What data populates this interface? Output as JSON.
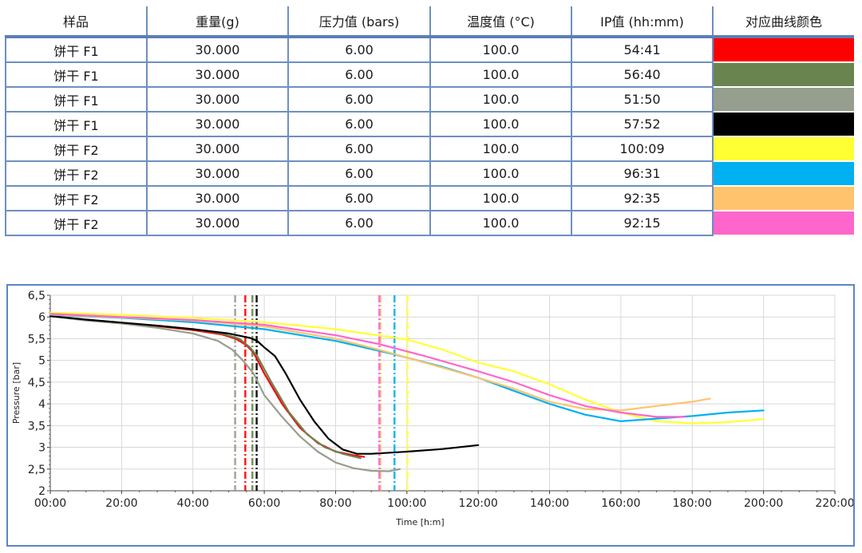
{
  "table": {
    "headers": [
      "样品",
      "重量(g)",
      "压力值 (bars)",
      "温度值 (°C)",
      "IP值 (hh:mm)",
      "对应曲线颜色"
    ],
    "rows": [
      {
        "sample": "饼干 F1",
        "weight": "30.000",
        "pressure": "6.00",
        "temperature": "100.0",
        "ip": "54:41",
        "color": "#ff0000"
      },
      {
        "sample": "饼干 F1",
        "weight": "30.000",
        "pressure": "6.00",
        "temperature": "100.0",
        "ip": "56:40",
        "color": "#6a8450"
      },
      {
        "sample": "饼干 F1",
        "weight": "30.000",
        "pressure": "6.00",
        "temperature": "100.0",
        "ip": "51:50",
        "color": "#969e8e"
      },
      {
        "sample": "饼干 F1",
        "weight": "30.000",
        "pressure": "6.00",
        "temperature": "100.0",
        "ip": "57:52",
        "color": "#000000"
      },
      {
        "sample": "饼干 F2",
        "weight": "30.000",
        "pressure": "6.00",
        "temperature": "100.0",
        "ip": "100:09",
        "color": "#ffff33"
      },
      {
        "sample": "饼干 F2",
        "weight": "30.000",
        "pressure": "6.00",
        "temperature": "100.0",
        "ip": "96:31",
        "color": "#00b0f0"
      },
      {
        "sample": "饼干 F2",
        "weight": "30.000",
        "pressure": "6.00",
        "temperature": "100.0",
        "ip": "92:35",
        "color": "#ffc36e"
      },
      {
        "sample": "饼干 F2",
        "weight": "30.000",
        "pressure": "6.00",
        "temperature": "100.0",
        "ip": "92:15",
        "color": "#ff66cc"
      }
    ]
  },
  "chart_data": {
    "type": "line",
    "xlabel": "Time [h:m]",
    "ylabel": "Pressure [bar]",
    "xlim": [
      0,
      220
    ],
    "ylim": [
      2,
      6.5
    ],
    "x_ticks": [
      "00:00",
      "20:00",
      "40:00",
      "60:00",
      "80:00",
      "100:00",
      "120:00",
      "140:00",
      "160:00",
      "180:00",
      "200:00",
      "220:00"
    ],
    "y_ticks": [
      "2",
      "2,5",
      "3",
      "3,5",
      "4",
      "4,5",
      "5",
      "5,5",
      "6",
      "6,5"
    ],
    "grid": true,
    "series": [
      {
        "color": "#ff0000",
        "ip": 54.68,
        "points": [
          [
            0,
            6.02
          ],
          [
            10,
            5.93
          ],
          [
            20,
            5.86
          ],
          [
            30,
            5.79
          ],
          [
            40,
            5.7
          ],
          [
            48,
            5.6
          ],
          [
            52,
            5.5
          ],
          [
            55,
            5.35
          ],
          [
            57,
            5.18
          ],
          [
            60,
            4.7
          ],
          [
            65,
            4.0
          ],
          [
            70,
            3.45
          ],
          [
            75,
            3.1
          ],
          [
            80,
            2.9
          ],
          [
            85,
            2.82
          ],
          [
            88,
            2.78
          ]
        ]
      },
      {
        "color": "#6a8450",
        "ip": 56.67,
        "points": [
          [
            0,
            6.02
          ],
          [
            10,
            5.94
          ],
          [
            20,
            5.87
          ],
          [
            30,
            5.8
          ],
          [
            40,
            5.72
          ],
          [
            48,
            5.62
          ],
          [
            53,
            5.5
          ],
          [
            56,
            5.3
          ],
          [
            58,
            5.1
          ],
          [
            62,
            4.5
          ],
          [
            67,
            3.8
          ],
          [
            72,
            3.3
          ],
          [
            77,
            3.0
          ],
          [
            82,
            2.85
          ],
          [
            87,
            2.75
          ]
        ]
      },
      {
        "color": "#969e8e",
        "ip": 51.83,
        "points": [
          [
            0,
            6.02
          ],
          [
            10,
            5.92
          ],
          [
            20,
            5.85
          ],
          [
            30,
            5.75
          ],
          [
            40,
            5.62
          ],
          [
            47,
            5.45
          ],
          [
            51,
            5.25
          ],
          [
            54,
            5.0
          ],
          [
            57,
            4.7
          ],
          [
            60,
            4.2
          ],
          [
            65,
            3.7
          ],
          [
            70,
            3.25
          ],
          [
            75,
            2.9
          ],
          [
            80,
            2.65
          ],
          [
            85,
            2.52
          ],
          [
            90,
            2.46
          ],
          [
            95,
            2.45
          ],
          [
            98,
            2.5
          ]
        ]
      },
      {
        "color": "#000000",
        "ip": 57.87,
        "points": [
          [
            0,
            6.02
          ],
          [
            10,
            5.94
          ],
          [
            20,
            5.87
          ],
          [
            30,
            5.8
          ],
          [
            40,
            5.72
          ],
          [
            50,
            5.62
          ],
          [
            56,
            5.52
          ],
          [
            58,
            5.45
          ],
          [
            60,
            5.3
          ],
          [
            63,
            5.1
          ],
          [
            66,
            4.7
          ],
          [
            70,
            4.1
          ],
          [
            74,
            3.6
          ],
          [
            78,
            3.2
          ],
          [
            82,
            2.95
          ],
          [
            86,
            2.85
          ],
          [
            90,
            2.85
          ],
          [
            100,
            2.9
          ],
          [
            110,
            2.96
          ],
          [
            120,
            3.05
          ]
        ]
      },
      {
        "color": "#ffff33",
        "ip": 100.15,
        "points": [
          [
            0,
            6.1
          ],
          [
            20,
            6.05
          ],
          [
            40,
            5.98
          ],
          [
            60,
            5.88
          ],
          [
            80,
            5.72
          ],
          [
            100,
            5.48
          ],
          [
            110,
            5.25
          ],
          [
            120,
            4.95
          ],
          [
            130,
            4.75
          ],
          [
            140,
            4.45
          ],
          [
            150,
            4.1
          ],
          [
            160,
            3.8
          ],
          [
            170,
            3.6
          ],
          [
            180,
            3.55
          ],
          [
            190,
            3.58
          ],
          [
            200,
            3.65
          ]
        ]
      },
      {
        "color": "#00b0f0",
        "ip": 96.52,
        "points": [
          [
            0,
            6.05
          ],
          [
            20,
            5.98
          ],
          [
            40,
            5.88
          ],
          [
            60,
            5.72
          ],
          [
            80,
            5.45
          ],
          [
            96,
            5.15
          ],
          [
            110,
            4.85
          ],
          [
            120,
            4.6
          ],
          [
            130,
            4.3
          ],
          [
            140,
            4.0
          ],
          [
            150,
            3.75
          ],
          [
            160,
            3.6
          ],
          [
            170,
            3.66
          ],
          [
            180,
            3.72
          ],
          [
            190,
            3.8
          ],
          [
            200,
            3.85
          ]
        ]
      },
      {
        "color": "#ffc36e",
        "ip": 92.58,
        "points": [
          [
            0,
            6.06
          ],
          [
            20,
            5.99
          ],
          [
            40,
            5.92
          ],
          [
            60,
            5.78
          ],
          [
            80,
            5.5
          ],
          [
            92,
            5.25
          ],
          [
            105,
            4.95
          ],
          [
            120,
            4.6
          ],
          [
            130,
            4.35
          ],
          [
            140,
            4.05
          ],
          [
            150,
            3.88
          ],
          [
            160,
            3.85
          ],
          [
            170,
            3.95
          ],
          [
            180,
            4.05
          ],
          [
            185,
            4.12
          ]
        ]
      },
      {
        "color": "#ff66cc",
        "ip": 92.25,
        "points": [
          [
            0,
            6.07
          ],
          [
            20,
            6.0
          ],
          [
            40,
            5.93
          ],
          [
            60,
            5.82
          ],
          [
            80,
            5.58
          ],
          [
            92,
            5.38
          ],
          [
            105,
            5.1
          ],
          [
            120,
            4.75
          ],
          [
            130,
            4.5
          ],
          [
            140,
            4.2
          ],
          [
            150,
            3.95
          ],
          [
            160,
            3.8
          ],
          [
            170,
            3.7
          ],
          [
            178,
            3.7
          ]
        ]
      }
    ]
  }
}
